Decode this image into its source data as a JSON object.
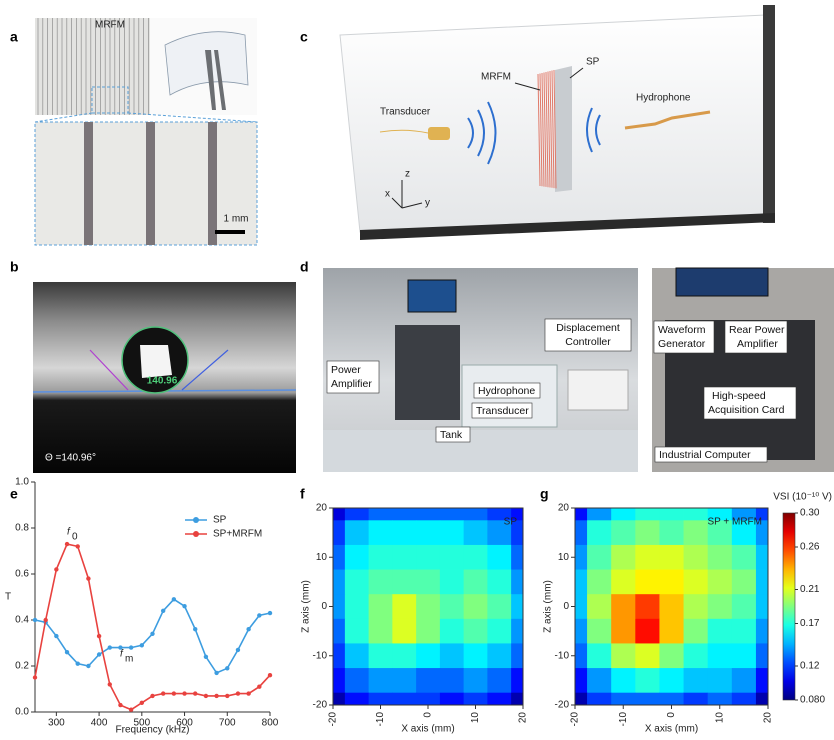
{
  "panels": {
    "a": {
      "label": "a",
      "material": "MRFM",
      "scale": "1 mm"
    },
    "b": {
      "label": "b",
      "angle_readout": "140.96",
      "contact_angle": "Θ =140.96°"
    },
    "c": {
      "label": "c",
      "mrfm": "MRFM",
      "sp": "SP",
      "transducer": "Transducer",
      "hydrophone": "Hydrophone",
      "axes": {
        "z": "z",
        "x": "x",
        "y": "y"
      }
    },
    "d": {
      "label": "d",
      "displacement_controller": [
        "Displacement",
        "Controller"
      ],
      "power_amplifier": [
        "Power",
        "Amplifier"
      ],
      "hydrophone": "Hydrophone",
      "transducer": "Transducer",
      "tank": "Tank",
      "waveform_generator": [
        "Waveform",
        "Generator"
      ],
      "rear_power_amplifier": [
        "Rear Power",
        "Amplifier"
      ],
      "acquisition_card": [
        "High-speed",
        "Acquisition Card"
      ],
      "industrial_computer": "Industrial Computer"
    },
    "e": {
      "label": "e"
    },
    "f": {
      "label": "f"
    },
    "g": {
      "label": "g"
    }
  },
  "chart_data": [
    {
      "type": "line",
      "x_label": "Frequency (kHz)",
      "y_label": "T",
      "x": [
        250,
        275,
        300,
        325,
        350,
        375,
        400,
        425,
        450,
        475,
        500,
        525,
        550,
        575,
        600,
        625,
        650,
        675,
        700,
        725,
        750,
        775,
        800
      ],
      "series": [
        {
          "name": "SP",
          "color": "#3d9de0",
          "values": [
            0.4,
            0.39,
            0.33,
            0.26,
            0.21,
            0.2,
            0.25,
            0.28,
            0.28,
            0.28,
            0.29,
            0.34,
            0.44,
            0.49,
            0.46,
            0.36,
            0.24,
            0.17,
            0.19,
            0.27,
            0.36,
            0.42,
            0.43
          ]
        },
        {
          "name": "SP+MRFM",
          "color": "#e8423f",
          "values": [
            0.15,
            0.4,
            0.62,
            0.73,
            0.72,
            0.58,
            0.33,
            0.12,
            0.03,
            0.01,
            0.04,
            0.07,
            0.08,
            0.08,
            0.08,
            0.08,
            0.07,
            0.07,
            0.07,
            0.08,
            0.08,
            0.11,
            0.16
          ]
        }
      ],
      "xlim": [
        250,
        800
      ],
      "xticks": [
        300,
        400,
        500,
        600,
        700,
        800
      ],
      "ylim": [
        0,
        1
      ],
      "yticks": [
        {
          "value": 0,
          "label": "0.0"
        },
        0.2,
        0.4,
        0.6,
        0.8,
        {
          "value": 1,
          "label": "1.0"
        }
      ],
      "legend": "upper right",
      "annotations": [
        {
          "text": "f",
          "sub": "0"
        },
        {
          "text": "f",
          "sub": "m"
        }
      ]
    },
    {
      "type": "heatmap",
      "annotation": "SP",
      "x_label": "X axis (mm)",
      "y_label": "Z axis (mm)",
      "x": [
        -20,
        -15,
        -10,
        -5,
        0,
        5,
        10,
        15,
        20
      ],
      "z": [
        20,
        15,
        10,
        5,
        0,
        -5,
        -10,
        -15,
        -20
      ],
      "values": [
        [
          0.1,
          0.12,
          0.13,
          0.13,
          0.13,
          0.13,
          0.13,
          0.12,
          0.11
        ],
        [
          0.12,
          0.15,
          0.16,
          0.16,
          0.16,
          0.16,
          0.15,
          0.14,
          0.12
        ],
        [
          0.13,
          0.16,
          0.17,
          0.17,
          0.17,
          0.17,
          0.17,
          0.16,
          0.13
        ],
        [
          0.14,
          0.17,
          0.18,
          0.18,
          0.18,
          0.17,
          0.18,
          0.17,
          0.14
        ],
        [
          0.14,
          0.17,
          0.19,
          0.21,
          0.19,
          0.18,
          0.19,
          0.18,
          0.15
        ],
        [
          0.13,
          0.17,
          0.19,
          0.21,
          0.19,
          0.17,
          0.18,
          0.17,
          0.14
        ],
        [
          0.12,
          0.15,
          0.17,
          0.17,
          0.16,
          0.15,
          0.16,
          0.15,
          0.13
        ],
        [
          0.11,
          0.13,
          0.14,
          0.14,
          0.13,
          0.13,
          0.14,
          0.13,
          0.11
        ],
        [
          0.09,
          0.11,
          0.12,
          0.12,
          0.12,
          0.11,
          0.12,
          0.11,
          0.09
        ]
      ],
      "xlim": [
        -20,
        20
      ],
      "xticks": [
        -20,
        -10,
        0,
        10,
        20
      ],
      "ylim": [
        -20,
        20
      ],
      "yticks": [
        -20,
        -10,
        0,
        10,
        20
      ],
      "clim": [
        0.08,
        0.3
      ],
      "colormap": "jet"
    },
    {
      "type": "heatmap",
      "annotation": "SP + MRFM",
      "x_label": "X axis (mm)",
      "y_label": "Z axis (mm)",
      "x": [
        -20,
        -15,
        -10,
        -5,
        0,
        5,
        10,
        15,
        20
      ],
      "z": [
        20,
        15,
        10,
        5,
        0,
        -5,
        -10,
        -15,
        -20
      ],
      "values": [
        [
          0.11,
          0.14,
          0.16,
          0.17,
          0.17,
          0.17,
          0.16,
          0.14,
          0.12
        ],
        [
          0.13,
          0.17,
          0.18,
          0.19,
          0.18,
          0.19,
          0.18,
          0.16,
          0.14
        ],
        [
          0.14,
          0.18,
          0.2,
          0.21,
          0.21,
          0.2,
          0.19,
          0.18,
          0.15
        ],
        [
          0.15,
          0.19,
          0.21,
          0.22,
          0.22,
          0.21,
          0.2,
          0.19,
          0.15
        ],
        [
          0.15,
          0.2,
          0.24,
          0.26,
          0.23,
          0.2,
          0.19,
          0.18,
          0.15
        ],
        [
          0.14,
          0.19,
          0.24,
          0.27,
          0.23,
          0.19,
          0.17,
          0.17,
          0.14
        ],
        [
          0.13,
          0.17,
          0.2,
          0.21,
          0.19,
          0.17,
          0.16,
          0.16,
          0.13
        ],
        [
          0.11,
          0.14,
          0.16,
          0.17,
          0.16,
          0.15,
          0.15,
          0.14,
          0.11
        ],
        [
          0.09,
          0.12,
          0.13,
          0.13,
          0.13,
          0.12,
          0.13,
          0.12,
          0.09
        ]
      ],
      "xlim": [
        -20,
        20
      ],
      "xticks": [
        -20,
        -10,
        0,
        10,
        20
      ],
      "ylim": [
        -20,
        20
      ],
      "yticks": [
        -20,
        -10,
        0,
        10,
        20
      ],
      "clim": [
        0.08,
        0.3
      ],
      "colormap": "jet",
      "colorbar": {
        "label": "VSI (10⁻¹⁰ V)",
        "lim": [
          0.08,
          0.3
        ],
        "ticks": [
          {
            "value": 0.08,
            "label": "0.080"
          },
          0.12,
          0.17,
          0.21,
          0.26,
          {
            "value": 0.3,
            "label": "0.30"
          }
        ]
      }
    }
  ]
}
